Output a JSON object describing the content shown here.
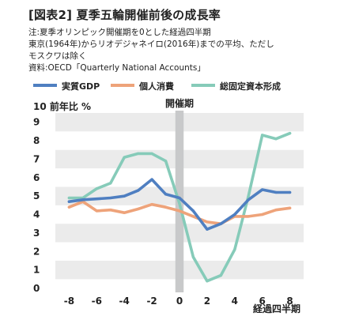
{
  "title": "[図表2] 夏季五輪開催前後の成長率",
  "notes": [
    "注:夏季オリンピック開催期を0とした経過四半期",
    "東京(1964年)からリオデジャネイロ(2016年)までの平均、ただし",
    "モスクワは除く",
    "資料:OECD「Quarterly National Accounts」"
  ],
  "colors": {
    "series1": "#4f7fc1",
    "series2": "#eea37a",
    "series3": "#86cbb9",
    "band": "#ebebeb",
    "highlight": "#c8c9ca"
  },
  "chart_data": {
    "type": "line",
    "title": "[図表2] 夏季五輪開催前後の成長率",
    "ylabel": "10 前年比 %",
    "xlabel": "経過四半期",
    "annotation": "開催期",
    "legend_position": "top",
    "grid": "alternating horizontal bands",
    "xlim": [
      -9,
      9
    ],
    "ylim": [
      0,
      9.5
    ],
    "xticks": [
      -8,
      -6,
      -4,
      -2,
      0,
      2,
      4,
      6,
      8
    ],
    "yticks": [
      0,
      1,
      2,
      3,
      4,
      5,
      6,
      7,
      8,
      9
    ],
    "x": [
      -8,
      -7,
      -6,
      -5,
      -4,
      -3,
      -2,
      -1,
      0,
      1,
      2,
      3,
      4,
      5,
      6,
      7,
      8
    ],
    "series": [
      {
        "name": "実質GDP",
        "values": [
          4.7,
          4.8,
          4.85,
          4.9,
          5.0,
          5.3,
          5.9,
          5.1,
          4.9,
          4.2,
          3.2,
          3.5,
          4.0,
          4.8,
          5.35,
          5.2,
          5.2
        ]
      },
      {
        "name": "個人消費",
        "values": [
          4.4,
          4.7,
          4.2,
          4.25,
          4.1,
          4.3,
          4.55,
          4.4,
          4.2,
          3.9,
          3.6,
          3.5,
          3.9,
          3.9,
          4.0,
          4.25,
          4.35
        ]
      },
      {
        "name": "総固定資本形成",
        "values": [
          4.9,
          4.9,
          5.4,
          5.7,
          7.1,
          7.3,
          7.3,
          6.9,
          4.6,
          1.7,
          0.4,
          0.7,
          2.1,
          5.0,
          8.3,
          8.1,
          8.4
        ]
      }
    ]
  }
}
